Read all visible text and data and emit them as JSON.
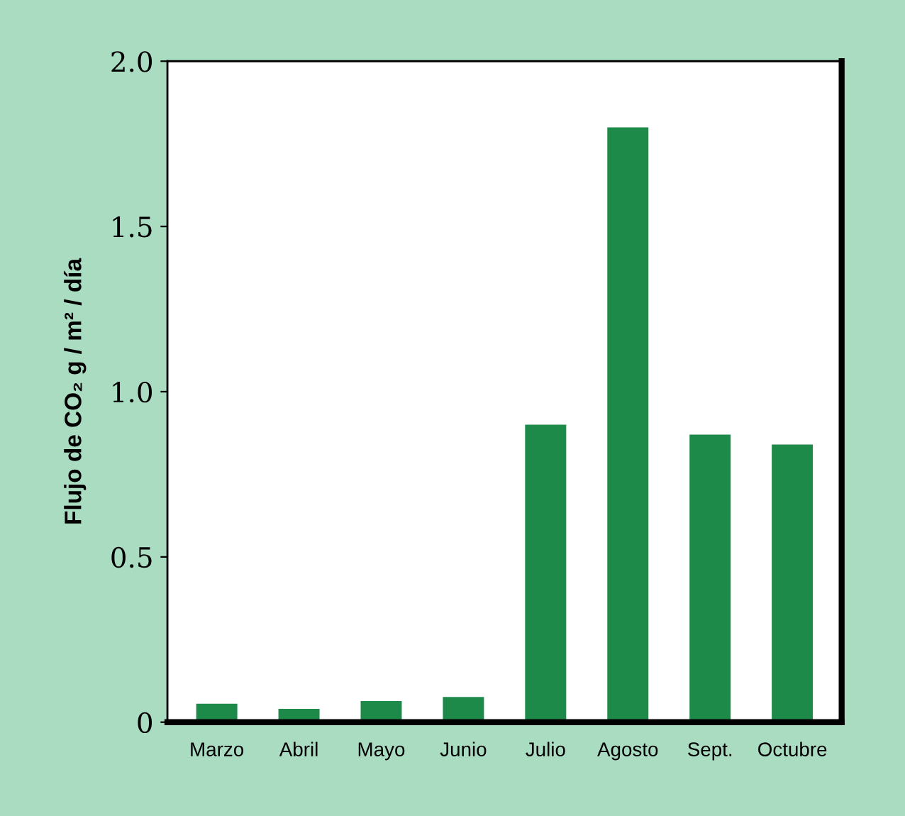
{
  "chart_data": {
    "type": "bar",
    "ylabel": "Flujo de CO₂ g / m² / día",
    "categories": [
      "Marzo",
      "Abril",
      "Mayo",
      "Junio",
      "Julio",
      "Agosto",
      "Sept.",
      "Octubre"
    ],
    "values": [
      0.056,
      0.04,
      0.064,
      0.076,
      0.9,
      1.8,
      0.87,
      0.84
    ],
    "color": "#1e8a4a",
    "ylim": [
      0,
      2.0
    ],
    "yticks": [
      0,
      {
        "value": 0.5,
        "label": "0.5"
      },
      {
        "value": 1.0,
        "label": "1.0"
      },
      {
        "value": 1.5,
        "label": "1.5"
      },
      {
        "value": 2.0,
        "label": "2.0"
      }
    ],
    "grid": false
  }
}
